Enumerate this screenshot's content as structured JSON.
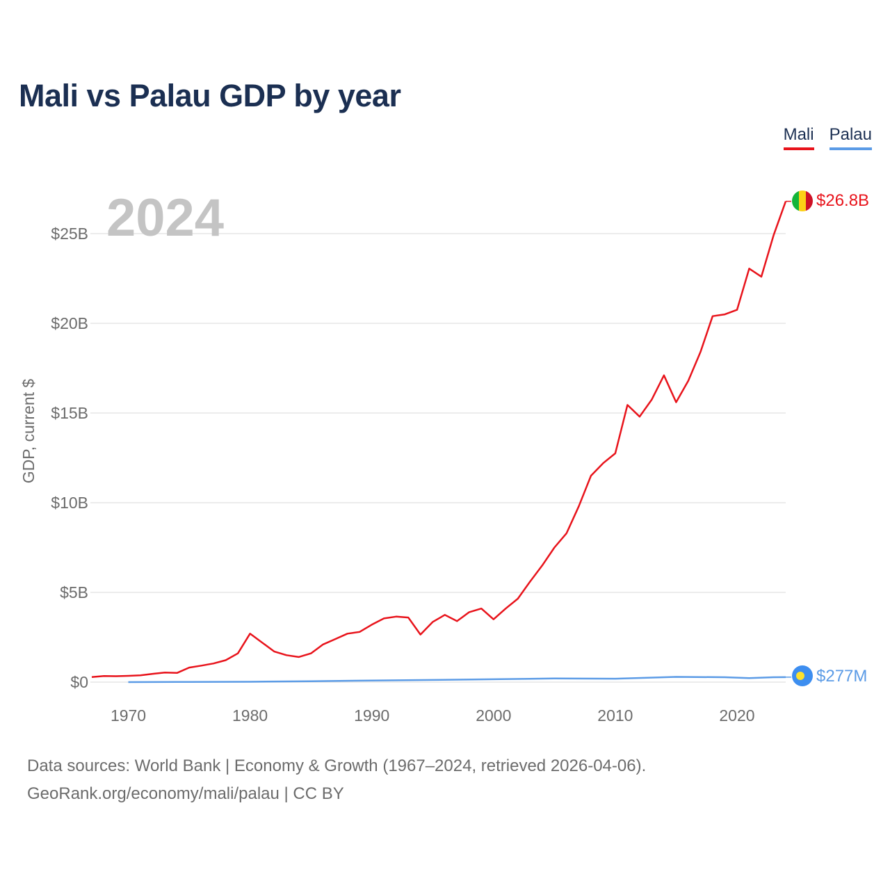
{
  "title": "Mali vs Palau GDP by year",
  "legend": {
    "mali": "Mali",
    "palau": "Palau"
  },
  "year_label": "2024",
  "footer": {
    "line1": "Data sources: World Bank | Economy & Growth (1967–2024, retrieved 2026-04-06).",
    "line2": "GeoRank.org/economy/mali/palau | CC BY"
  },
  "colors": {
    "mali": "#e8131b",
    "palau": "#5b9be6",
    "grid": "#e6e6e6",
    "axis_text": "#6b6b6b",
    "title": "#1b2f52"
  },
  "chart_data": {
    "type": "line",
    "title": "Mali vs Palau GDP by year",
    "ylabel": "GDP, current $",
    "xlabel": "",
    "xlim": [
      1967,
      2024
    ],
    "ylim": [
      0,
      27
    ],
    "y_unit": "billions USD",
    "y_ticks": [
      0,
      5,
      10,
      15,
      20,
      25
    ],
    "y_tick_labels": [
      "$0",
      "$5B",
      "$10B",
      "$15B",
      "$20B",
      "$25B"
    ],
    "x_ticks": [
      1970,
      1980,
      1990,
      2000,
      2010,
      2020
    ],
    "x_tick_labels": [
      "1970",
      "1980",
      "1990",
      "2000",
      "2010",
      "2020"
    ],
    "series": [
      {
        "name": "Mali",
        "end_label": "$26.8B",
        "x": [
          1967,
          1968,
          1969,
          1970,
          1971,
          1972,
          1973,
          1974,
          1975,
          1976,
          1977,
          1978,
          1979,
          1980,
          1981,
          1982,
          1983,
          1984,
          1985,
          1986,
          1987,
          1988,
          1989,
          1990,
          1991,
          1992,
          1993,
          1994,
          1995,
          1996,
          1997,
          1998,
          1999,
          2000,
          2001,
          2002,
          2003,
          2004,
          2005,
          2006,
          2007,
          2008,
          2009,
          2010,
          2011,
          2012,
          2013,
          2014,
          2015,
          2016,
          2017,
          2018,
          2019,
          2020,
          2021,
          2022,
          2023,
          2024
        ],
        "values": [
          0.28,
          0.34,
          0.33,
          0.35,
          0.38,
          0.46,
          0.53,
          0.51,
          0.81,
          0.92,
          1.04,
          1.22,
          1.6,
          2.7,
          2.2,
          1.7,
          1.5,
          1.4,
          1.6,
          2.1,
          2.4,
          2.7,
          2.8,
          3.2,
          3.55,
          3.65,
          3.6,
          2.65,
          3.35,
          3.75,
          3.4,
          3.9,
          4.1,
          3.5,
          4.1,
          4.65,
          5.6,
          6.5,
          7.5,
          8.3,
          9.8,
          11.5,
          12.2,
          12.75,
          15.45,
          14.8,
          15.75,
          17.1,
          15.6,
          16.8,
          18.4,
          20.4,
          20.5,
          20.75,
          23.05,
          22.6,
          24.9,
          26.8
        ]
      },
      {
        "name": "Palau",
        "end_label": "$277M",
        "x": [
          1970,
          1975,
          1980,
          1985,
          1990,
          1995,
          2000,
          2005,
          2010,
          2015,
          2019,
          2021,
          2023,
          2024
        ],
        "values": [
          0.0,
          0.01,
          0.02,
          0.05,
          0.09,
          0.12,
          0.16,
          0.2,
          0.19,
          0.29,
          0.27,
          0.22,
          0.27,
          0.277
        ]
      }
    ]
  }
}
